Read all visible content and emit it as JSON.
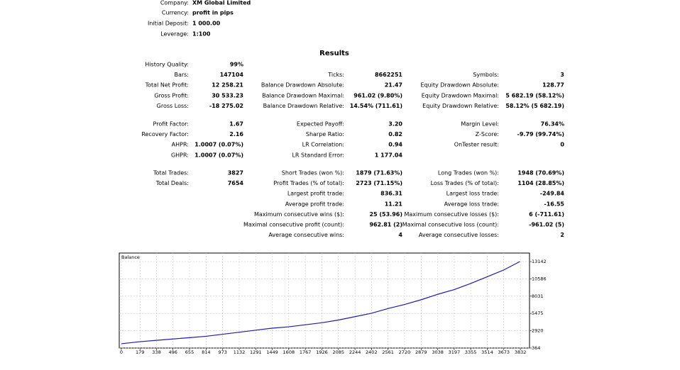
{
  "header": [
    {
      "label": "Company:",
      "value": "XM Global Limited"
    },
    {
      "label": "Currency:",
      "value": "profit in pips"
    },
    {
      "label": "Initial Deposit:",
      "value": "1 000.00"
    },
    {
      "label": "Leverage:",
      "value": "1:100"
    }
  ],
  "results": {
    "title": "Results",
    "groups": [
      [
        [
          {
            "label": "History Quality:",
            "value": "99%"
          },
          null,
          null
        ],
        [
          {
            "label": "Bars:",
            "value": "147104"
          },
          {
            "label": "Ticks:",
            "value": "8662251"
          },
          {
            "label": "Symbols:",
            "value": "3"
          }
        ],
        [
          {
            "label": "Total Net Profit:",
            "value": "12 258.21"
          },
          {
            "label": "Balance Drawdown Absolute:",
            "value": "21.47"
          },
          {
            "label": "Equity Drawdown Absolute:",
            "value": "128.77"
          }
        ],
        [
          {
            "label": "Gross Profit:",
            "value": "30 533.23"
          },
          {
            "label": "Balance Drawdown Maximal:",
            "value": "961.02 (9.80%)"
          },
          {
            "label": "Equity Drawdown Maximal:",
            "value": "5 682.19 (58.12%)"
          }
        ],
        [
          {
            "label": "Gross Loss:",
            "value": "-18 275.02"
          },
          {
            "label": "Balance Drawdown Relative:",
            "value": "14.54% (711.61)"
          },
          {
            "label": "Equity Drawdown Relative:",
            "value": "58.12% (5 682.19)"
          }
        ]
      ],
      [
        [
          {
            "label": "Profit Factor:",
            "value": "1.67"
          },
          {
            "label": "Expected Payoff:",
            "value": "3.20"
          },
          {
            "label": "Margin Level:",
            "value": "76.34%"
          }
        ],
        [
          {
            "label": "Recovery Factor:",
            "value": "2.16"
          },
          {
            "label": "Sharpe Ratio:",
            "value": "0.82"
          },
          {
            "label": "Z-Score:",
            "value": "-9.79 (99.74%)"
          }
        ],
        [
          {
            "label": "AHPR:",
            "value": "1.0007 (0.07%)"
          },
          {
            "label": "LR Correlation:",
            "value": "0.94"
          },
          {
            "label": "OnTester result:",
            "value": "0"
          }
        ],
        [
          {
            "label": "GHPR:",
            "value": "1.0007 (0.07%)"
          },
          {
            "label": "LR Standard Error:",
            "value": "1 177.04"
          },
          null
        ]
      ],
      [
        [
          {
            "label": "Total Trades:",
            "value": "3827"
          },
          {
            "label": "Short Trades (won %):",
            "value": "1879 (71.63%)"
          },
          {
            "label": "Long Trades (won %):",
            "value": "1948 (70.69%)"
          }
        ],
        [
          {
            "label": "Total Deals:",
            "value": "7654"
          },
          {
            "label": "Profit Trades (% of total):",
            "value": "2723 (71.15%)"
          },
          {
            "label": "Loss Trades (% of total):",
            "value": "1104 (28.85%)"
          }
        ],
        [
          null,
          {
            "label": "Largest profit trade:",
            "value": "836.31"
          },
          {
            "label": "Largest loss trade:",
            "value": "-249.84"
          }
        ],
        [
          null,
          {
            "label": "Average profit trade:",
            "value": "11.21"
          },
          {
            "label": "Average loss trade:",
            "value": "-16.55"
          }
        ],
        [
          null,
          {
            "label": "Maximum consecutive wins ($):",
            "value": "25 (53.96)"
          },
          {
            "label": "Maximum consecutive losses ($):",
            "value": "6 (-711.61)"
          }
        ],
        [
          null,
          {
            "label": "Maximal consecutive profit (count):",
            "value": "962.81 (2)"
          },
          {
            "label": "Maximal consecutive loss (count):",
            "value": "-961.02 (5)"
          }
        ],
        [
          null,
          {
            "label": "Average consecutive wins:",
            "value": "4"
          },
          {
            "label": "Average consecutive losses:",
            "value": "2"
          }
        ]
      ]
    ]
  },
  "chart_data": {
    "type": "line",
    "x": [
      0,
      179,
      338,
      496,
      655,
      814,
      973,
      1132,
      1291,
      1449,
      1608,
      1767,
      1926,
      2085,
      2244,
      2402,
      2561,
      2720,
      2879,
      3038,
      3197,
      3355,
      3514,
      3673,
      3827
    ],
    "series": [
      {
        "name": "Balance",
        "color": "#1c1cb4",
        "values": [
          1000,
          1300,
          1500,
          1700,
          1900,
          2100,
          2400,
          2700,
          3000,
          3300,
          3500,
          3800,
          4100,
          4500,
          5000,
          5500,
          6200,
          6800,
          7500,
          8300,
          9000,
          9900,
          10900,
          11900,
          13142
        ]
      }
    ],
    "xlim": [
      -20,
      3920
    ],
    "ylim": [
      364,
      14400
    ],
    "xticks": [
      0,
      179,
      338,
      496,
      655,
      814,
      973,
      1132,
      1291,
      1449,
      1608,
      1767,
      1926,
      2085,
      2244,
      2402,
      2561,
      2720,
      2879,
      3038,
      3197,
      3355,
      3514,
      3673,
      3832
    ],
    "yticks": [
      364,
      2920,
      5475,
      8031,
      10586,
      13142
    ],
    "grid": true
  }
}
